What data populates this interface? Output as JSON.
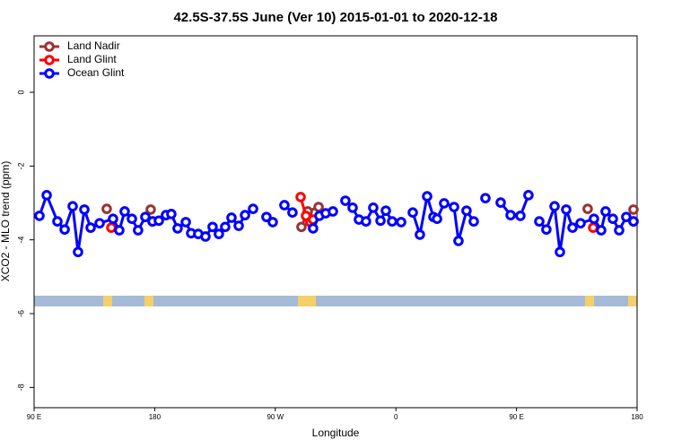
{
  "chart_data": {
    "type": "line",
    "title": "42.5S-37.5S June (Ver 10)   2015-01-01 to 2020-12-18",
    "x_label": "Longitude",
    "y_label": "XCO2 - MLO trend (ppm)",
    "xlim": [
      90,
      540
    ],
    "ylim": [
      -8.55,
      1.53
    ],
    "xticks": [
      {
        "value": 90,
        "label": "90 E"
      },
      {
        "value": 180,
        "label": "180"
      },
      {
        "value": 270,
        "label": "90 W"
      },
      {
        "value": 360,
        "label": "0"
      },
      {
        "value": 450,
        "label": "90 E"
      },
      {
        "value": 540,
        "label": "180"
      }
    ],
    "yticks": [
      0,
      -2,
      -4,
      -6,
      -8
    ],
    "legend": "top-left",
    "series": [
      {
        "name": "Land Nadir",
        "color": "#993333",
        "x": [
          144.2,
          null,
          177.0,
          null,
          289.5,
          294.2,
          302.3,
          null,
          503.1,
          null,
          537.3
        ],
        "values": [
          -3.16,
          null,
          -3.18,
          null,
          -3.65,
          -3.23,
          -3.11,
          null,
          -3.16,
          null,
          -3.18
        ]
      },
      {
        "name": "Land Glint",
        "color": "#ff0000",
        "x": [
          147.6,
          null,
          178.4,
          null,
          288.9,
          292.9,
          296.2,
          298.2,
          null,
          507.2,
          null,
          537.3
        ],
        "values": [
          -3.67,
          null,
          -3.5,
          null,
          -2.84,
          -3.35,
          -3.52,
          -3.45,
          null,
          -3.67,
          null,
          -3.5
        ]
      },
      {
        "name": "Ocean Glint",
        "color": "#0000ff",
        "x": [
          94.0,
          99.4,
          107.4,
          112.8,
          118.8,
          122.8,
          127.5,
          132.2,
          138.9,
          148.9,
          153.6,
          157.6,
          163.0,
          167.6,
          173.0,
          178.4,
          183.1,
          188.4,
          192.4,
          197.1,
          203.2,
          207.2,
          212.5,
          217.9,
          223.2,
          227.9,
          232.6,
          237.3,
          242.7,
          247.4,
          253.4,
          null,
          263.4,
          268.1,
          null,
          276.8,
          282.8,
          null,
          298.2,
          302.9,
          307.6,
          313.0,
          null,
          322.3,
          327.7,
          332.4,
          337.7,
          343.1,
          348.5,
          352.5,
          357.2,
          363.9,
          null,
          372.6,
          377.9,
          383.3,
          388.0,
          390.7,
          396.0,
          403.4,
          406.7,
          412.7,
          418.1,
          null,
          426.8,
          null,
          438.2,
          445.6,
          452.9,
          458.9,
          null,
          467.0,
          472.3,
          478.4,
          482.4,
          487.1,
          491.8,
          497.8,
          507.8,
          513.2,
          516.5,
          521.9,
          526.6,
          531.9,
          537.3
        ],
        "values": [
          -3.35,
          -2.79,
          -3.5,
          -3.72,
          -3.09,
          -4.33,
          -3.18,
          -3.67,
          -3.55,
          -3.43,
          -3.74,
          -3.23,
          -3.43,
          -3.74,
          -3.38,
          -3.5,
          -3.48,
          -3.33,
          -3.3,
          -3.69,
          -3.52,
          -3.82,
          -3.84,
          -3.91,
          -3.65,
          -3.84,
          -3.65,
          -3.4,
          -3.62,
          -3.33,
          -3.16,
          null,
          -3.38,
          -3.52,
          null,
          -3.06,
          -3.26,
          null,
          -3.69,
          -3.35,
          -3.28,
          -3.23,
          null,
          -2.94,
          -3.13,
          -3.45,
          -3.5,
          -3.13,
          -3.48,
          -3.21,
          -3.5,
          -3.52,
          null,
          -3.26,
          -3.86,
          -2.82,
          -3.38,
          -3.43,
          -3.01,
          -3.11,
          -4.03,
          -3.21,
          -3.5,
          null,
          -2.87,
          null,
          -2.99,
          -3.33,
          -3.35,
          -2.79,
          null,
          -3.5,
          -3.72,
          -3.09,
          -4.33,
          -3.18,
          -3.67,
          -3.55,
          -3.43,
          -3.74,
          -3.23,
          -3.43,
          -3.74,
          -3.38,
          -3.5
        ]
      }
    ]
  }
}
